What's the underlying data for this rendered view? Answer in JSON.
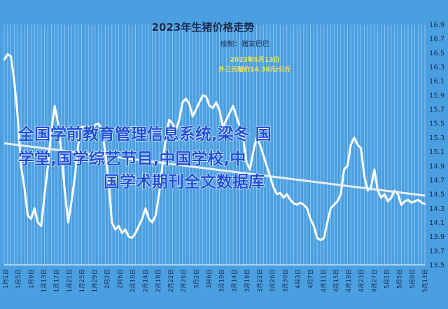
{
  "chart_data": {
    "type": "line",
    "title": "2023年生猪价格走势",
    "subtitle": "绘制：猪友巴巴",
    "annotation": [
      "2023年5月13日",
      "外三元猪价14.36元/公斤"
    ],
    "ylim": [
      13.5,
      16.9
    ],
    "yticks": [
      13.5,
      13.7,
      13.9,
      14.1,
      14.3,
      14.5,
      14.7,
      14.9,
      15.1,
      15.3,
      15.5,
      15.7,
      15.9,
      16.1,
      16.3,
      16.5,
      16.7,
      16.9
    ],
    "x_tick_labels": [
      "1月1日",
      "1月5日",
      "1月9日",
      "1月13日",
      "1月17日",
      "1月21日",
      "1月25日",
      "1月29日",
      "2月2日",
      "2月6日",
      "2月10日",
      "2月14日",
      "2月18日",
      "2月22日",
      "2月26日",
      "3月2日",
      "3月6日",
      "3月10日",
      "3月14日",
      "3月18日",
      "3月22日",
      "3月26日",
      "3月30日",
      "4月3日",
      "4月7日",
      "4月11日",
      "4月15日",
      "4月19日",
      "4月23日",
      "4月27日",
      "5月1日",
      "5月5日",
      "5月9日",
      "5月13日"
    ],
    "series": [
      {
        "values": [
          16.4,
          16.48,
          16.45,
          16.1,
          15.6,
          14.9,
          14.6,
          14.2,
          14.15,
          14.3,
          14.1,
          14.05,
          14.5,
          14.9,
          15.4,
          15.75,
          15.5,
          15.1,
          14.55,
          14.1,
          14.4,
          14.75,
          15.2,
          15.45,
          15.45,
          15.45,
          15.4,
          15.48,
          15.5,
          15.42,
          15.1,
          14.7,
          14.1,
          14.0,
          14.05,
          13.95,
          14.0,
          13.9,
          13.88,
          13.95,
          14.05,
          14.15,
          14.3,
          14.15,
          14.1,
          14.2,
          14.5,
          14.9,
          15.3,
          15.55,
          15.5,
          15.4,
          15.55,
          15.8,
          15.85,
          15.78,
          15.6,
          15.7,
          15.8,
          15.9,
          15.88,
          15.75,
          15.72,
          15.8,
          15.68,
          15.45,
          15.55,
          15.65,
          15.75,
          15.6,
          15.45,
          15.3,
          14.95,
          14.85,
          15.1,
          15.3,
          15.2,
          15.05,
          14.9,
          14.75,
          14.6,
          14.5,
          14.52,
          14.45,
          14.5,
          14.42,
          14.37,
          14.35,
          14.38,
          14.35,
          14.3,
          14.15,
          14.05,
          13.88,
          13.85,
          13.88,
          14.1,
          14.3,
          14.35,
          14.4,
          14.5,
          14.85,
          14.9,
          15.2,
          15.3,
          15.2,
          15.15,
          14.75,
          14.55,
          14.6,
          14.85,
          14.55,
          14.45,
          14.5,
          14.4,
          14.45,
          14.55,
          14.5,
          14.35,
          14.4,
          14.42,
          14.38,
          14.4,
          14.42,
          14.38,
          14.36
        ]
      }
    ],
    "trendline": {
      "start": 15.22,
      "end": 14.48
    },
    "grid": "vertical",
    "legend": "none"
  },
  "watermark": {
    "lines": [
      "全国学前教育管理信息系统,梁冬 国",
      "学堂,国学综艺节目,中国学校,中",
      "国学术期刊全文数据库"
    ]
  }
}
